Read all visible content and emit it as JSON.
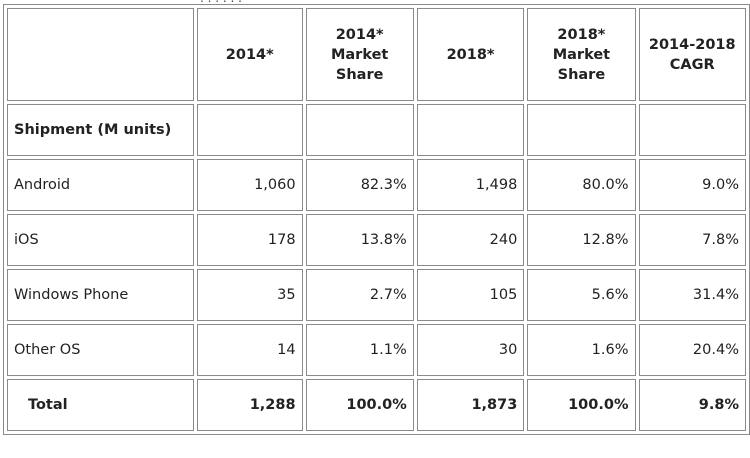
{
  "chart_data": {
    "type": "table",
    "columns": [
      "",
      "2014*",
      "2014* Market Share",
      "2018*",
      "2018* Market Share",
      "2014-2018 CAGR"
    ],
    "column_lines": [
      [
        ""
      ],
      [
        "2014*"
      ],
      [
        "2014*",
        "Market",
        "Share"
      ],
      [
        "2018*"
      ],
      [
        "2018*",
        "Market",
        "Share"
      ],
      [
        "2014-2018",
        "CAGR"
      ]
    ],
    "group_label": "Shipment (M units)",
    "rows": [
      {
        "label": "Android",
        "values": [
          "1,060",
          "82.3%",
          "1,498",
          "80.0%",
          "9.0%"
        ]
      },
      {
        "label": "iOS",
        "values": [
          "178",
          "13.8%",
          "240",
          "12.8%",
          "7.8%"
        ]
      },
      {
        "label": "Windows Phone",
        "values": [
          "35",
          "2.7%",
          "105",
          "5.6%",
          "31.4%"
        ]
      },
      {
        "label": "Other OS",
        "values": [
          "14",
          "1.1%",
          "30",
          "1.6%",
          "20.4%"
        ]
      }
    ],
    "total": {
      "label": "Total",
      "values": [
        "1,288",
        "100.0%",
        "1,873",
        "100.0%",
        "9.8%"
      ]
    }
  }
}
